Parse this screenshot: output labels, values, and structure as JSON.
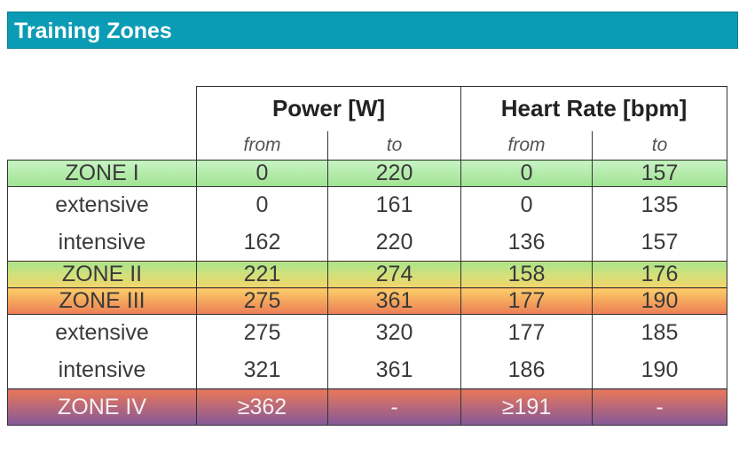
{
  "title": "Training Zones",
  "headers": {
    "power": "Power [W]",
    "heart_rate": "Heart Rate [bpm]",
    "from": "from",
    "to": "to"
  },
  "rows": [
    {
      "label": "ZONE I",
      "power_from": "0",
      "power_to": "220",
      "hr_from": "0",
      "hr_to": "157"
    },
    {
      "label": "extensive",
      "power_from": "0",
      "power_to": "161",
      "hr_from": "0",
      "hr_to": "135"
    },
    {
      "label": "intensive",
      "power_from": "162",
      "power_to": "220",
      "hr_from": "136",
      "hr_to": "157"
    },
    {
      "label": "ZONE II",
      "power_from": "221",
      "power_to": "274",
      "hr_from": "158",
      "hr_to": "176"
    },
    {
      "label": "ZONE III",
      "power_from": "275",
      "power_to": "361",
      "hr_from": "177",
      "hr_to": "190"
    },
    {
      "label": "extensive",
      "power_from": "275",
      "power_to": "320",
      "hr_from": "177",
      "hr_to": "185"
    },
    {
      "label": "intensive",
      "power_from": "321",
      "power_to": "361",
      "hr_from": "186",
      "hr_to": "190"
    },
    {
      "label": "ZONE IV",
      "power_from": "≥362",
      "power_to": "-",
      "hr_from": "≥191",
      "hr_to": "-"
    }
  ],
  "colors": {
    "title_bar": "#0a9bb5",
    "zone_1": "#b3ebaa",
    "zone_2": "#d3e07a",
    "zone_3": "#f4a55c",
    "zone_4": "#b7687a"
  }
}
